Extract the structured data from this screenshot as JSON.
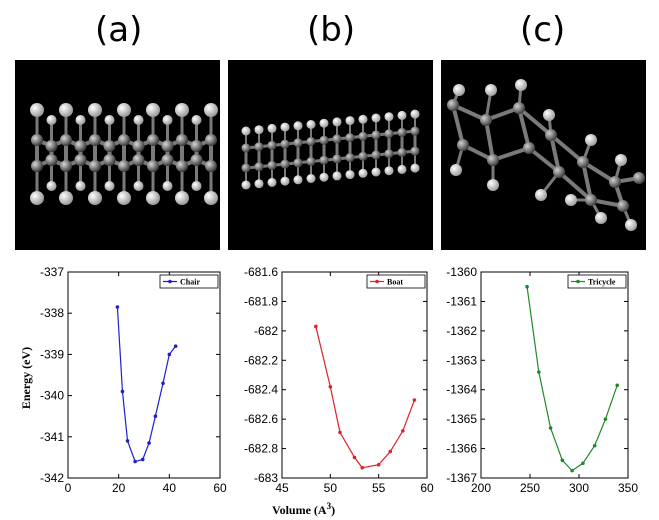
{
  "panels": [
    {
      "label": "(a)"
    },
    {
      "label": "(b)"
    },
    {
      "label": "(c)"
    }
  ],
  "ylabel": "Energy (eV)",
  "xlabel_main": "Volume  (A",
  "xlabel_sup": "3",
  "xlabel_end": ")",
  "chart_data": [
    {
      "type": "line",
      "series": [
        {
          "name": "Chair",
          "color": "#1f1fd0",
          "x": [
            19.5,
            21.5,
            23.5,
            26.5,
            29.5,
            32,
            34.5,
            37.5,
            40,
            42.5
          ],
          "y": [
            -337.85,
            -339.9,
            -341.1,
            -341.6,
            -341.55,
            -341.15,
            -340.5,
            -339.7,
            -339.0,
            -338.8
          ]
        }
      ],
      "xlim": [
        0,
        60
      ],
      "ylim": [
        -342,
        -337
      ],
      "xticks": [
        "0",
        "20",
        "40",
        "60"
      ],
      "yticks": [
        "-342",
        "-341",
        "-340",
        "-339",
        "-338",
        "-337"
      ],
      "legend": "top-right",
      "grid": false
    },
    {
      "type": "line",
      "series": [
        {
          "name": "Boat",
          "color": "#e0202a",
          "x": [
            48.5,
            50,
            51,
            52.5,
            53.3,
            55,
            56.2,
            57.5,
            58.7
          ],
          "y": [
            -681.97,
            -682.38,
            -682.69,
            -682.86,
            -682.93,
            -682.91,
            -682.82,
            -682.68,
            -682.47
          ]
        }
      ],
      "xlim": [
        45,
        60
      ],
      "ylim": [
        -683,
        -681.6
      ],
      "xticks": [
        "45",
        "50",
        "55",
        "60"
      ],
      "yticks": [
        "-683",
        "-682.8",
        "-682.6",
        "-682.4",
        "-682.2",
        "-682",
        "-681.8",
        "-681.6"
      ],
      "legend": "top-right",
      "grid": false
    },
    {
      "type": "line",
      "series": [
        {
          "name": "Tricycle",
          "color": "#1f8a2a",
          "x": [
            247,
            259,
            271,
            283,
            293,
            304,
            316,
            327,
            339
          ],
          "y": [
            -1360.5,
            -1363.4,
            -1365.3,
            -1366.4,
            -1366.75,
            -1366.5,
            -1365.9,
            -1365.0,
            -1363.85
          ]
        }
      ],
      "xlim": [
        200,
        350
      ],
      "ylim": [
        -1367,
        -1360
      ],
      "xticks": [
        "200",
        "250",
        "300",
        "350"
      ],
      "yticks": [
        "-1367",
        "-1366",
        "-1365",
        "-1364",
        "-1363",
        "-1362",
        "-1361",
        "-1360"
      ],
      "legend": "top-right",
      "grid": false
    }
  ]
}
